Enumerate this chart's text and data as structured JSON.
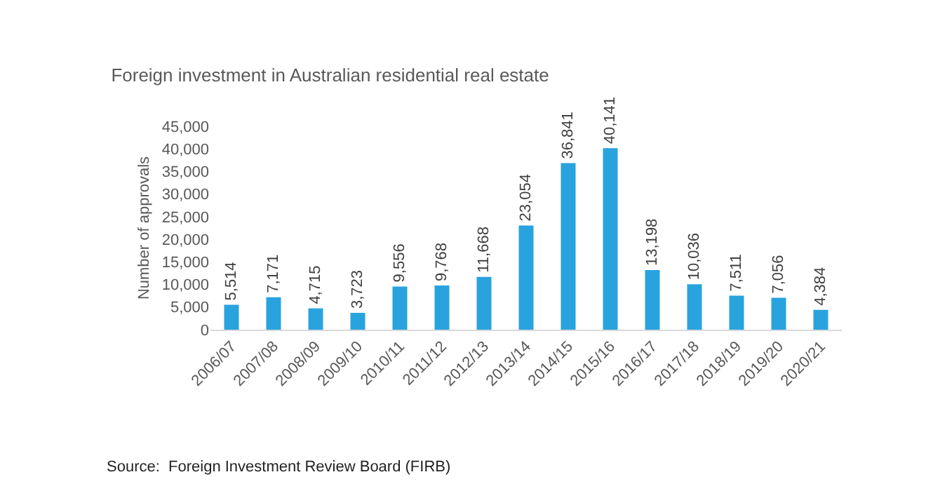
{
  "chart_data": {
    "type": "bar",
    "title": "Foreign investment in Australian residential real estate",
    "ylabel": "Number of approvals",
    "categories": [
      "2006/07",
      "2007/08",
      "2008/09",
      "2009/10",
      "2010/11",
      "2011/12",
      "2012/13",
      "2013/14",
      "2014/15",
      "2015/16",
      "2016/17",
      "2017/18",
      "2018/19",
      "2019/20",
      "2020/21"
    ],
    "values": [
      5514,
      7171,
      4715,
      3723,
      9556,
      9768,
      11668,
      23054,
      36841,
      40141,
      13198,
      10036,
      7511,
      7056,
      4384
    ],
    "value_labels": [
      "5,514",
      "7,171",
      "4,715",
      "3,723",
      "9,556",
      "9,768",
      "11,668",
      "23,054",
      "36,841",
      "40,141",
      "13,198",
      "10,036",
      "7,511",
      "7,056",
      "4,384"
    ],
    "color": "#29a3de",
    "ylim": [
      0,
      45000
    ],
    "yticks": [
      {
        "value": 0,
        "label": "0"
      },
      {
        "value": 5000,
        "label": "5,000"
      },
      {
        "value": 10000,
        "label": "10,000"
      },
      {
        "value": 15000,
        "label": "15,000"
      },
      {
        "value": 20000,
        "label": "20,000"
      },
      {
        "value": 25000,
        "label": "25,000"
      },
      {
        "value": 30000,
        "label": "30,000"
      },
      {
        "value": 35000,
        "label": "35,000"
      },
      {
        "value": 40000,
        "label": "40,000"
      },
      {
        "value": 45000,
        "label": "45,000"
      }
    ],
    "grid": false,
    "legend": false,
    "annotations": [
      "Source:  Foreign Investment Review Board (FIRB)"
    ]
  }
}
